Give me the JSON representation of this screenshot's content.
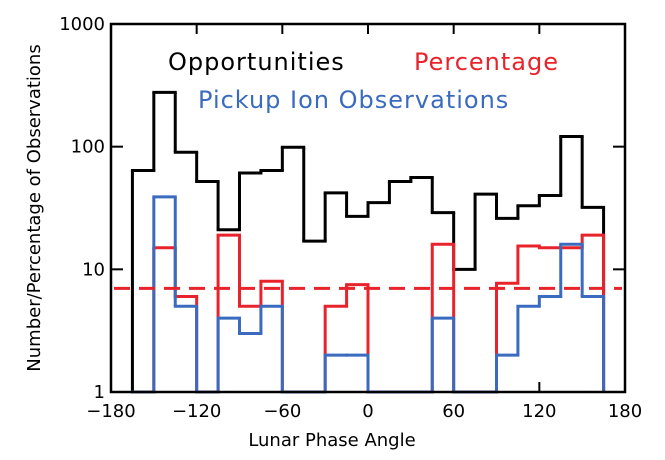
{
  "chart_data": {
    "type": "step-histogram",
    "xlabel": "Lunar Phase Angle",
    "ylabel": "Number/Percentage of Observations",
    "log_y": true,
    "xlim": [
      -180,
      180
    ],
    "ylim": [
      1,
      1000
    ],
    "xticks": [
      {
        "value": -180,
        "label": "−180"
      },
      {
        "value": -120,
        "label": "−120"
      },
      {
        "value": -60,
        "label": "−60"
      },
      0,
      60,
      120,
      180
    ],
    "yticks": [
      1,
      10,
      100,
      1000
    ],
    "bins": [
      -165,
      -150,
      -135,
      -120,
      -105,
      -90,
      -75,
      -60,
      -45,
      -30,
      -15,
      0,
      15,
      30,
      45,
      60,
      75,
      90,
      105,
      120,
      135,
      150,
      165
    ],
    "series": [
      {
        "name": "Opportunities",
        "color": "#000000",
        "values": [
          64,
          277,
          90,
          52,
          21,
          61,
          64,
          99,
          17,
          42,
          27,
          35,
          52,
          56,
          29,
          10,
          41,
          26,
          33,
          40,
          121,
          32
        ]
      },
      {
        "name": "Percentage",
        "color": "#e8232b",
        "values": [
          1,
          15,
          6,
          1,
          19,
          5,
          8,
          1,
          1,
          5,
          7.5,
          1,
          1,
          1,
          16,
          1,
          1,
          7.7,
          15.5,
          15,
          15,
          19
        ]
      },
      {
        "name": "Pickup Ion Observations",
        "color": "#3a6bbf",
        "values": [
          1,
          39,
          5,
          1,
          4,
          3,
          5,
          1,
          1,
          2,
          2,
          1,
          1,
          1,
          4,
          1,
          1,
          2,
          5,
          6,
          16,
          6
        ]
      }
    ],
    "reference_line": {
      "value": 7,
      "color": "#e8232b",
      "style": "dashed"
    }
  }
}
